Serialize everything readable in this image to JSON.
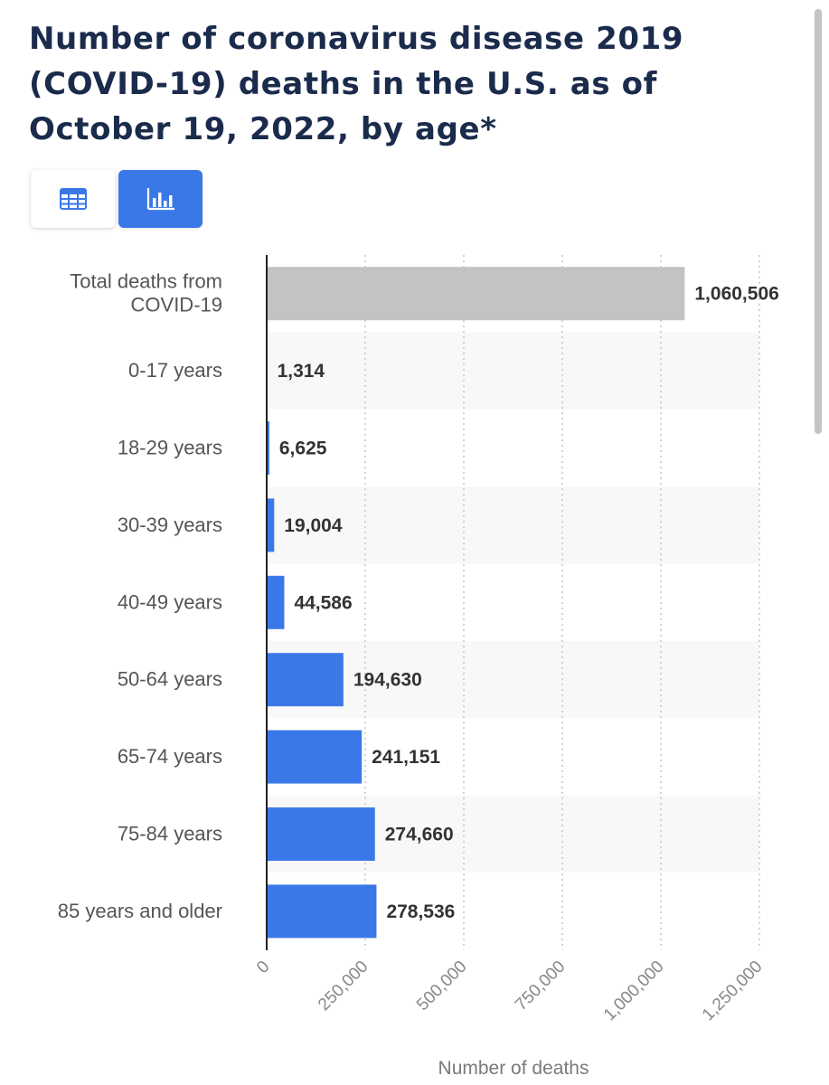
{
  "page": {
    "title": "Number of coronavirus disease 2019 (COVID-19) deaths in the U.S. as of October 19, 2022, by age*"
  },
  "view_toggle": {
    "table_icon": "table-grid-icon",
    "chart_icon": "bar-chart-icon",
    "active": "chart"
  },
  "colors": {
    "title": "#1a2b4c",
    "bar": "#3b78e7",
    "total_bar": "#c3c3c3",
    "band": "#f8f8f8",
    "toggle_active": "#3b78e7"
  },
  "chart_data": {
    "type": "bar",
    "orientation": "horizontal",
    "title": "Number of coronavirus disease 2019 (COVID-19) deaths in the U.S. as of October 19, 2022, by age*",
    "categories": [
      [
        "Total deaths from",
        "COVID-19"
      ],
      [
        "0-17 years"
      ],
      [
        "18-29 years"
      ],
      [
        "30-39 years"
      ],
      [
        "40-49 years"
      ],
      [
        "50-64 years"
      ],
      [
        "65-74 years"
      ],
      [
        "75-84 years"
      ],
      [
        "85 years and older"
      ]
    ],
    "values": [
      1060506,
      1314,
      6625,
      19004,
      44586,
      194630,
      241151,
      274660,
      278536
    ],
    "value_labels": [
      "1,060,506",
      "1,314",
      "6,625",
      "19,004",
      "44,586",
      "194,630",
      "241,151",
      "274,660",
      "278,536"
    ],
    "highlight": [
      true,
      false,
      false,
      false,
      false,
      false,
      false,
      false,
      false
    ],
    "xlabel": "Number of deaths",
    "ylabel": "",
    "xlim": [
      0,
      1250000
    ],
    "xticks": [
      0,
      250000,
      500000,
      750000,
      1000000,
      1250000
    ],
    "xtick_labels": [
      "0",
      "250,000",
      "500,000",
      "750,000",
      "1,000,000",
      "1,250,000"
    ],
    "grid": true
  }
}
